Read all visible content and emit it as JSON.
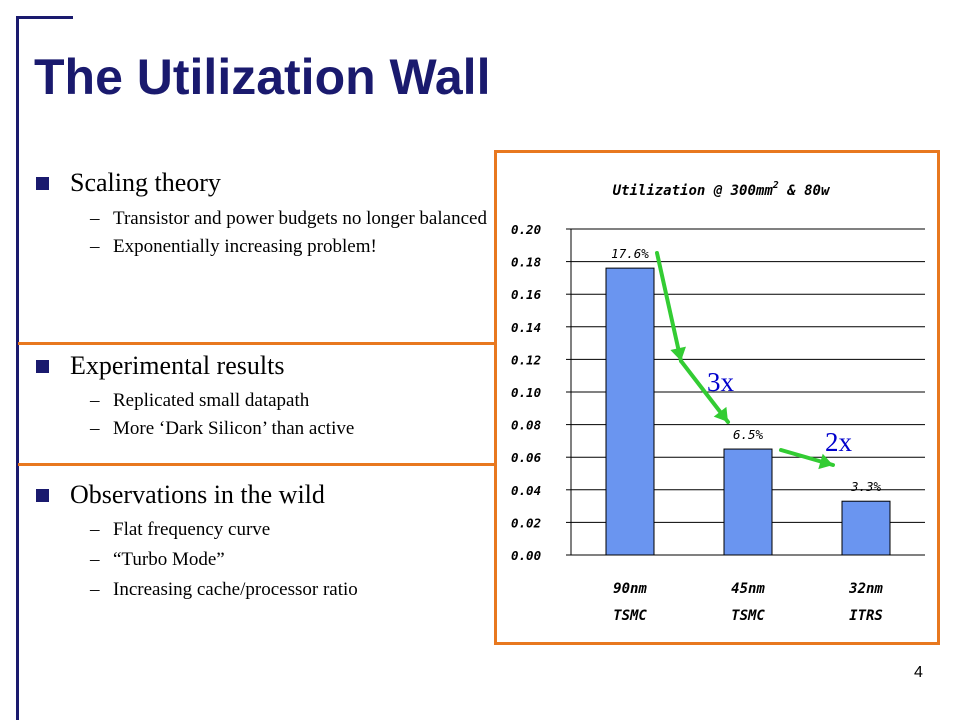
{
  "slide": {
    "title": "The Utilization Wall",
    "page_number": "4",
    "colors": {
      "title": "#1a1a6e",
      "bullet_square": "#1a1a6e",
      "highlight": "#e8781f",
      "arrow": "#33cc33",
      "annotation": "#0000cc",
      "bar": "#6a95f0"
    }
  },
  "sections": [
    {
      "heading": "Scaling theory",
      "items": [
        "Transistor and power budgets no longer balanced",
        "Exponentially increasing problem!"
      ]
    },
    {
      "heading": "Experimental results",
      "items": [
        "Replicated small datapath",
        "More ‘Dark Silicon’ than active"
      ]
    },
    {
      "heading": "Observations in the wild",
      "items": [
        "Flat frequency curve",
        "“Turbo Mode”",
        "Increasing cache/processor ratio"
      ]
    }
  ],
  "chart_data": {
    "type": "bar",
    "title": "Utilization @ 300mm",
    "title_superscript": "2",
    "title_suffix": " & 80w",
    "categories": [
      {
        "line1": "90nm",
        "line2": "TSMC"
      },
      {
        "line1": "45nm",
        "line2": "TSMC"
      },
      {
        "line1": "32nm",
        "line2": "ITRS"
      }
    ],
    "values": [
      0.176,
      0.065,
      0.033
    ],
    "data_labels": [
      "17.6%",
      "6.5%",
      "3.3%"
    ],
    "ylim": [
      0,
      0.2
    ],
    "yticks": [
      "0.00",
      "0.02",
      "0.04",
      "0.06",
      "0.08",
      "0.10",
      "0.12",
      "0.14",
      "0.16",
      "0.18",
      "0.20"
    ],
    "grid": true,
    "annotations": [
      "3x",
      "2x"
    ]
  }
}
